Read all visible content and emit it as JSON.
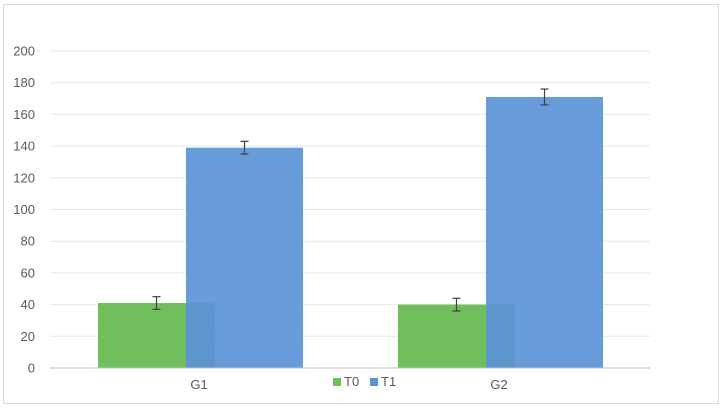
{
  "chart_data": {
    "type": "bar",
    "categories": [
      "G1",
      "G2"
    ],
    "series": [
      {
        "name": "T0",
        "values": [
          41,
          40
        ],
        "errors": [
          4,
          4
        ],
        "color": "#70bf5c"
      },
      {
        "name": "T1",
        "values": [
          139,
          171
        ],
        "errors": [
          4,
          5
        ],
        "color": "#5b93d7"
      }
    ],
    "y_ticks": [
      "0",
      "20",
      "40",
      "60",
      "80",
      "100",
      "120",
      "140",
      "160",
      "180",
      "200"
    ],
    "ylim": [
      0,
      200
    ],
    "grid": true,
    "legend_position": "bottom-center",
    "title": "",
    "xlabel": "",
    "ylabel": ""
  }
}
